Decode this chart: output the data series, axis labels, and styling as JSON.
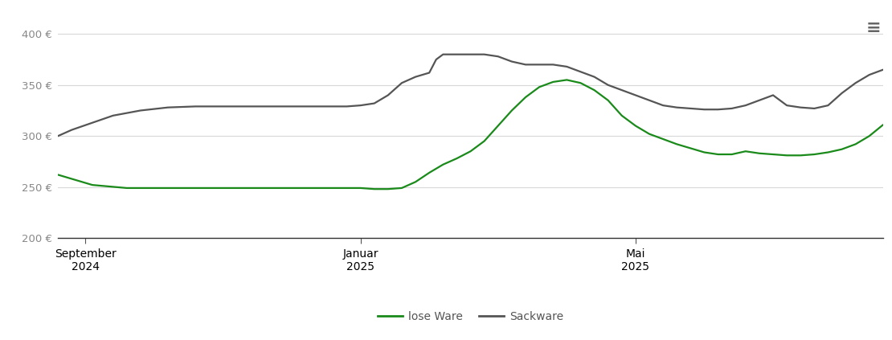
{
  "ylim": [
    200,
    420
  ],
  "yticks": [
    200,
    250,
    300,
    350,
    400
  ],
  "ytick_labels": [
    "200 €",
    "250 €",
    "300 €",
    "350 €",
    "400 €"
  ],
  "background_color": "#ffffff",
  "grid_color": "#d8d8d8",
  "line_color_lose": "#1a8a1a",
  "line_color_sack": "#555555",
  "legend_labels": [
    "lose Ware",
    "Sackware"
  ],
  "lose_ware_x": [
    0,
    2,
    5,
    10,
    15,
    20,
    25,
    30,
    35,
    38,
    40,
    42,
    44,
    46,
    48,
    50,
    52,
    54,
    56,
    58,
    60,
    62,
    64,
    66,
    68,
    70,
    72,
    74,
    76,
    78,
    80,
    82,
    84,
    86,
    88,
    90,
    92,
    94,
    96,
    98,
    100
  ],
  "lose_ware_y": [
    262,
    258,
    252,
    249,
    249,
    249,
    249,
    249,
    249,
    249,
    249,
    249,
    249,
    248,
    248,
    249,
    255,
    264,
    272,
    278,
    285,
    295,
    310,
    325,
    338,
    348,
    353,
    355,
    352,
    345,
    335,
    320,
    310,
    302,
    297,
    292,
    288,
    284,
    282,
    282,
    285
  ],
  "lose_ware_x2": [
    100,
    102,
    104,
    106,
    108,
    110,
    112,
    114,
    116,
    118,
    120
  ],
  "lose_ware_y2": [
    285,
    283,
    282,
    281,
    281,
    282,
    284,
    287,
    292,
    300,
    311
  ],
  "sack_ware_x": [
    0,
    2,
    5,
    8,
    12,
    16,
    20,
    25,
    30,
    35,
    38,
    40,
    42,
    44,
    46,
    48,
    50,
    52,
    53,
    54,
    55,
    56,
    58,
    60,
    62,
    64,
    66,
    68,
    70,
    72,
    74,
    76,
    78,
    80,
    82,
    84,
    86,
    88,
    90,
    92,
    94,
    96,
    98,
    100,
    102,
    104,
    106,
    108,
    110,
    112,
    114,
    116,
    118,
    120
  ],
  "sack_ware_y": [
    300,
    306,
    313,
    320,
    325,
    328,
    329,
    329,
    329,
    329,
    329,
    329,
    329,
    330,
    332,
    340,
    352,
    358,
    360,
    362,
    375,
    380,
    380,
    380,
    380,
    378,
    373,
    370,
    370,
    370,
    368,
    363,
    358,
    350,
    345,
    340,
    335,
    330,
    328,
    327,
    326,
    326,
    327,
    330,
    335,
    340,
    330,
    328,
    327,
    330,
    342,
    352,
    360,
    365
  ],
  "xlim": [
    0,
    120
  ],
  "xtick_vals": [
    4,
    44,
    84
  ],
  "xtick_labels": [
    "September\n2024",
    "Januar\n2025",
    "Mai\n2025"
  ]
}
